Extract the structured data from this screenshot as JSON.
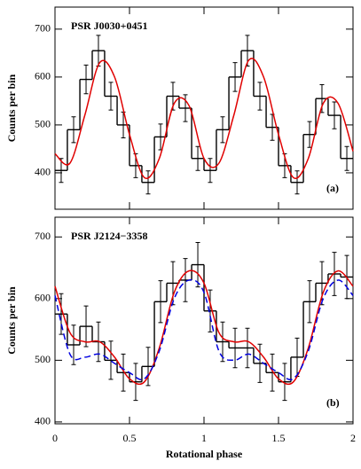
{
  "chart_data": [
    {
      "type": "histogram",
      "title": "PSR J0030+0451",
      "annotation": "(a)",
      "ylabel": "Counts per bin",
      "bins": [
        0,
        0.083,
        0.167,
        0.25,
        0.333,
        0.417,
        0.5,
        0.583,
        0.667,
        0.75,
        0.833,
        0.917,
        1,
        1.083,
        1.167,
        1.25,
        1.333,
        1.417,
        1.5,
        1.583,
        1.667,
        1.75,
        1.833,
        1.917,
        2
      ],
      "values": [
        405,
        490,
        595,
        655,
        560,
        500,
        415,
        380,
        475,
        560,
        535,
        430,
        405,
        490,
        600,
        655,
        560,
        495,
        415,
        380,
        480,
        555,
        520,
        430
      ],
      "errors": [
        25,
        27,
        30,
        32,
        29,
        27,
        25,
        24,
        27,
        29,
        28,
        25,
        25,
        27,
        30,
        32,
        29,
        27,
        25,
        24,
        27,
        29,
        28,
        25
      ],
      "color": "#000000",
      "curves": [
        {
          "color": "#e00000",
          "dashed": false,
          "x": [
            0,
            0.1,
            0.2,
            0.3,
            0.4,
            0.5,
            0.6,
            0.7,
            0.8,
            0.9,
            1,
            1.1,
            1.2,
            1.3,
            1.4,
            1.5,
            1.6,
            1.7,
            1.8,
            1.9,
            2
          ],
          "values": [
            440,
            420,
            520,
            630,
            600,
            480,
            390,
            430,
            545,
            540,
            430,
            420,
            520,
            635,
            600,
            480,
            390,
            430,
            545,
            545,
            445
          ]
        }
      ],
      "xlim": [
        0,
        2
      ],
      "ylim": [
        324,
        746
      ],
      "xticks": [
        0,
        0.5,
        1,
        1.5,
        2
      ],
      "yticks": [
        400,
        500,
        600,
        700
      ]
    },
    {
      "type": "histogram",
      "title": "PSR J2124−3358",
      "annotation": "(b)",
      "ylabel": "Counts per bin",
      "xlabel": "Rotational phase",
      "bins": [
        0,
        0.083,
        0.167,
        0.25,
        0.333,
        0.417,
        0.5,
        0.583,
        0.667,
        0.75,
        0.833,
        0.917,
        1,
        1.083,
        1.167,
        1.25,
        1.333,
        1.417,
        1.5,
        1.583,
        1.667,
        1.75,
        1.833,
        1.917,
        2
      ],
      "values": [
        575,
        525,
        555,
        530,
        500,
        480,
        465,
        490,
        595,
        625,
        630,
        655,
        580,
        530,
        520,
        520,
        495,
        480,
        465,
        505,
        595,
        625,
        640,
        635
      ],
      "errors": [
        33,
        32,
        33,
        32,
        31,
        30,
        30,
        31,
        34,
        35,
        35,
        36,
        34,
        32,
        32,
        32,
        31,
        30,
        30,
        31,
        34,
        35,
        35,
        35
      ],
      "color": "#000000",
      "curves": [
        {
          "color": "#e00000",
          "dashed": false,
          "x": [
            0,
            0.1,
            0.2,
            0.3,
            0.4,
            0.5,
            0.6,
            0.7,
            0.8,
            0.9,
            1,
            1.1,
            1.2,
            1.3,
            1.4,
            1.5,
            1.6,
            1.7,
            1.8,
            1.9,
            2
          ],
          "values": [
            620,
            545,
            530,
            530,
            505,
            470,
            465,
            520,
            610,
            645,
            625,
            545,
            530,
            530,
            505,
            470,
            465,
            520,
            610,
            645,
            620
          ]
        },
        {
          "color": "#0000e0",
          "dashed": true,
          "x": [
            0,
            0.1,
            0.2,
            0.3,
            0.4,
            0.5,
            0.6,
            0.7,
            0.8,
            0.9,
            1,
            1.1,
            1.2,
            1.3,
            1.4,
            1.5,
            1.6,
            1.7,
            1.8,
            1.9,
            2
          ],
          "values": [
            605,
            510,
            505,
            510,
            495,
            480,
            470,
            515,
            600,
            630,
            610,
            515,
            500,
            510,
            495,
            480,
            470,
            515,
            600,
            630,
            605
          ]
        }
      ],
      "xlim": [
        0,
        2
      ],
      "ylim": [
        397,
        732
      ],
      "xticks": [
        0,
        0.5,
        1,
        1.5,
        2
      ],
      "yticks": [
        400,
        500,
        600,
        700
      ]
    }
  ]
}
